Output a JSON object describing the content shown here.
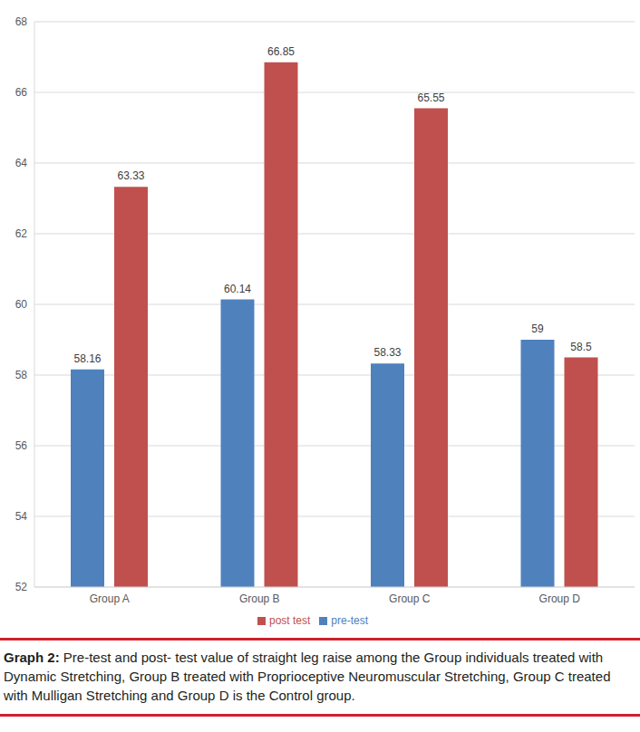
{
  "chart_data": {
    "type": "bar",
    "categories": [
      "Group A",
      "Group B",
      "Group C",
      "Group D"
    ],
    "series": [
      {
        "name": "pre-test",
        "color": "#4f81bd",
        "values": [
          58.16,
          60.14,
          58.33,
          59
        ]
      },
      {
        "name": "post test",
        "color": "#c0504d",
        "values": [
          63.33,
          66.85,
          65.55,
          58.5
        ]
      }
    ],
    "ylim": [
      52,
      68
    ],
    "yticks": [
      52,
      54,
      56,
      58,
      60,
      62,
      64,
      66,
      68
    ],
    "grid": true,
    "legend": "bottom",
    "data_labels": true
  },
  "caption": {
    "label": "Graph 2:",
    "text": "Pre-test and post- test value of straight leg raise among the Group individuals treated with Dynamic Stretching, Group B treated with Proprioceptive Neuromuscular Stretching, Group C treated with Mulligan Stretching and Group D is the Control group."
  }
}
